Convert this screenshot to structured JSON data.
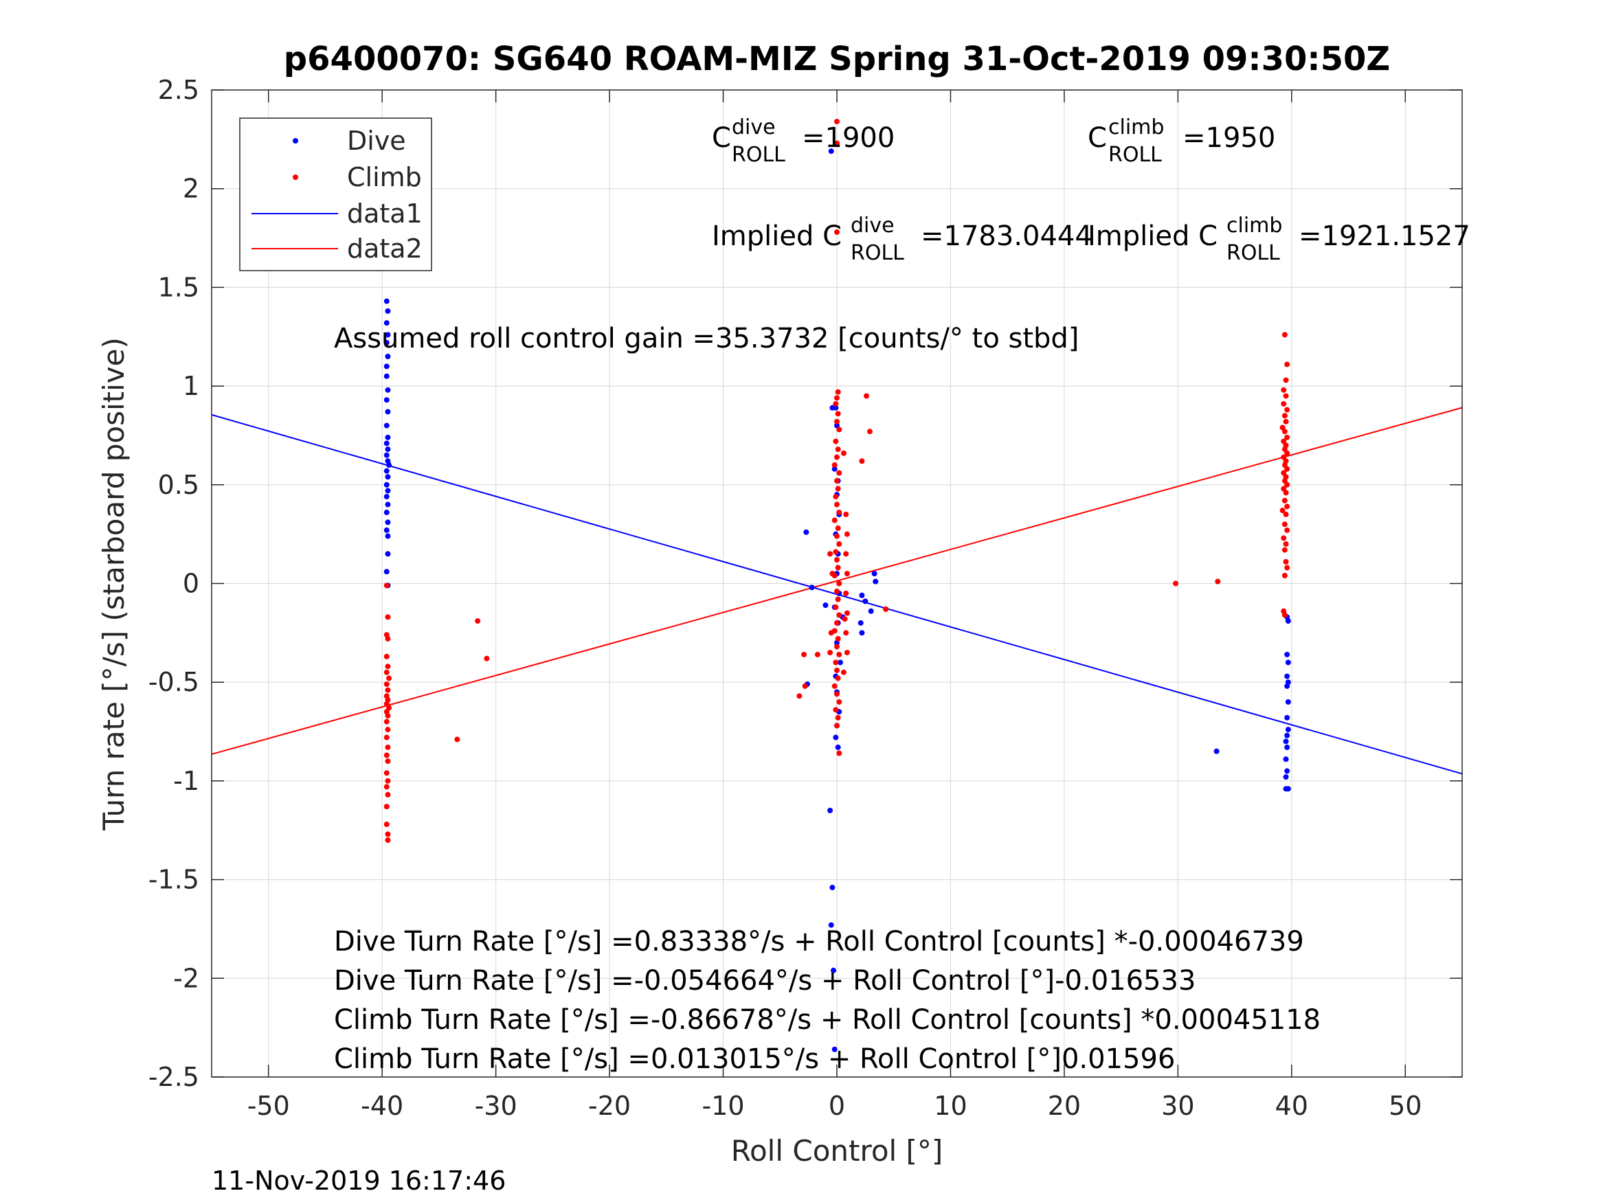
{
  "chart_data": {
    "type": "scatter",
    "title": "p6400070: SG640 ROAM-MIZ Spring 31-Oct-2019 09:30:50Z",
    "xlabel": "Roll Control [°]",
    "ylabel": "Turn rate [°/s] (starboard positive)",
    "xlim": [
      -55,
      55
    ],
    "ylim": [
      -2.5,
      2.5
    ],
    "xticks": [
      -50,
      -40,
      -30,
      -20,
      -10,
      0,
      10,
      20,
      30,
      40,
      50
    ],
    "yticks": [
      -2.5,
      -2,
      -1.5,
      -1,
      -0.5,
      0,
      0.5,
      1,
      1.5,
      2,
      2.5
    ],
    "xtick_labels": [
      "-50",
      "-40",
      "-30",
      "-20",
      "-10",
      "0",
      "10",
      "20",
      "30",
      "40",
      "50"
    ],
    "ytick_labels": [
      "-2.5",
      "-2",
      "-1.5",
      "-1",
      "-0.5",
      "0",
      "0.5",
      "1",
      "1.5",
      "2",
      "2.5"
    ],
    "grid": true,
    "legend_position": "top-left",
    "timestamp": "11-Nov-2019 16:17:46",
    "series": [
      {
        "name": "Dive",
        "kind": "points",
        "color": "#0000ff",
        "points": [
          [
            -39.6,
            1.7
          ],
          [
            -39.6,
            1.43
          ],
          [
            -39.5,
            1.38
          ],
          [
            -39.6,
            1.32
          ],
          [
            -39.5,
            1.26
          ],
          [
            -39.6,
            1.22
          ],
          [
            -39.5,
            1.15
          ],
          [
            -39.6,
            1.1
          ],
          [
            -39.6,
            1.05
          ],
          [
            -39.5,
            0.98
          ],
          [
            -39.6,
            0.93
          ],
          [
            -39.5,
            0.87
          ],
          [
            -39.6,
            0.8
          ],
          [
            -39.5,
            0.74
          ],
          [
            -39.6,
            0.71
          ],
          [
            -39.5,
            0.68
          ],
          [
            -39.6,
            0.65
          ],
          [
            -39.5,
            0.62
          ],
          [
            -39.4,
            0.6
          ],
          [
            -39.6,
            0.57
          ],
          [
            -39.5,
            0.54
          ],
          [
            -39.6,
            0.5
          ],
          [
            -39.5,
            0.47
          ],
          [
            -39.6,
            0.44
          ],
          [
            -39.5,
            0.4
          ],
          [
            -39.6,
            0.36
          ],
          [
            -39.5,
            0.31
          ],
          [
            -39.6,
            0.27
          ],
          [
            -39.5,
            0.24
          ],
          [
            -39.5,
            0.15
          ],
          [
            -39.6,
            0.06
          ],
          [
            -39.5,
            -0.01
          ],
          [
            -0.5,
            2.19
          ],
          [
            -0.4,
            0.89
          ],
          [
            -0.1,
            0.89
          ],
          [
            0.0,
            0.8
          ],
          [
            -0.2,
            0.58
          ],
          [
            0.1,
            0.52
          ],
          [
            0.0,
            0.45
          ],
          [
            0.2,
            0.35
          ],
          [
            -0.1,
            0.25
          ],
          [
            0.1,
            0.15
          ],
          [
            0.0,
            0.05
          ],
          [
            0.2,
            -0.05
          ],
          [
            -0.2,
            -0.12
          ],
          [
            0.1,
            -0.2
          ],
          [
            0.0,
            -0.3
          ],
          [
            0.3,
            -0.4
          ],
          [
            -0.1,
            -0.47
          ],
          [
            0.0,
            -0.55
          ],
          [
            0.2,
            -0.65
          ],
          [
            0.0,
            -0.72
          ],
          [
            -0.1,
            -0.78
          ],
          [
            0.1,
            -0.83
          ],
          [
            -0.6,
            -1.15
          ],
          [
            -0.4,
            -1.54
          ],
          [
            -0.5,
            -1.73
          ],
          [
            -0.3,
            -1.96
          ],
          [
            -0.2,
            -2.36
          ],
          [
            -1.0,
            -0.11
          ],
          [
            -2.7,
            0.26
          ],
          [
            -2.6,
            -0.51
          ],
          [
            -2.2,
            -0.02
          ],
          [
            2.2,
            -0.06
          ],
          [
            2.5,
            -0.09
          ],
          [
            2.2,
            -0.25
          ],
          [
            3.0,
            -0.14
          ],
          [
            3.3,
            0.05
          ],
          [
            3.4,
            0.01
          ],
          [
            2.1,
            -0.2
          ],
          [
            0.5,
            -0.17
          ],
          [
            39.6,
            -0.17
          ],
          [
            39.7,
            -0.19
          ],
          [
            39.6,
            -0.36
          ],
          [
            39.7,
            -0.4
          ],
          [
            39.6,
            -0.47
          ],
          [
            39.7,
            -0.5
          ],
          [
            39.6,
            -0.52
          ],
          [
            39.7,
            -0.6
          ],
          [
            39.6,
            -0.68
          ],
          [
            39.7,
            -0.74
          ],
          [
            39.6,
            -0.77
          ],
          [
            39.5,
            -0.8
          ],
          [
            39.6,
            -0.83
          ],
          [
            39.5,
            -0.89
          ],
          [
            39.6,
            -0.95
          ],
          [
            39.5,
            -0.98
          ],
          [
            39.5,
            -1.04
          ],
          [
            39.7,
            -1.04
          ],
          [
            33.4,
            -0.85
          ]
        ]
      },
      {
        "name": "Climb",
        "kind": "points",
        "color": "#ff0000",
        "points": [
          [
            -39.6,
            -0.01
          ],
          [
            -39.5,
            -0.17
          ],
          [
            -39.6,
            -0.26
          ],
          [
            -39.5,
            -0.28
          ],
          [
            -39.6,
            -0.37
          ],
          [
            -39.5,
            -0.42
          ],
          [
            -39.6,
            -0.45
          ],
          [
            -39.4,
            -0.48
          ],
          [
            -39.6,
            -0.51
          ],
          [
            -39.5,
            -0.54
          ],
          [
            -39.6,
            -0.57
          ],
          [
            -39.5,
            -0.59
          ],
          [
            -39.6,
            -0.61
          ],
          [
            -39.4,
            -0.63
          ],
          [
            -39.6,
            -0.65
          ],
          [
            -39.5,
            -0.67
          ],
          [
            -39.6,
            -0.7
          ],
          [
            -39.5,
            -0.74
          ],
          [
            -39.6,
            -0.78
          ],
          [
            -39.5,
            -0.83
          ],
          [
            -39.6,
            -0.87
          ],
          [
            -39.5,
            -0.9
          ],
          [
            -39.6,
            -0.96
          ],
          [
            -39.5,
            -1.0
          ],
          [
            -39.6,
            -1.03
          ],
          [
            -39.5,
            -1.07
          ],
          [
            -39.6,
            -1.13
          ],
          [
            -39.6,
            -1.22
          ],
          [
            -39.5,
            -1.27
          ],
          [
            -39.5,
            -1.3
          ],
          [
            -31.6,
            -0.19
          ],
          [
            -30.8,
            -0.38
          ],
          [
            -33.4,
            -0.79
          ],
          [
            0.0,
            2.34
          ],
          [
            0.0,
            2.23
          ],
          [
            0.0,
            1.78
          ],
          [
            0.1,
            0.97
          ],
          [
            0.0,
            0.94
          ],
          [
            -0.1,
            0.91
          ],
          [
            0.1,
            0.86
          ],
          [
            0.0,
            0.82
          ],
          [
            0.2,
            0.78
          ],
          [
            -0.1,
            0.72
          ],
          [
            0.1,
            0.68
          ],
          [
            0.0,
            0.64
          ],
          [
            -0.2,
            0.6
          ],
          [
            0.2,
            0.56
          ],
          [
            0.0,
            0.52
          ],
          [
            0.1,
            0.48
          ],
          [
            -0.1,
            0.44
          ],
          [
            0.0,
            0.4
          ],
          [
            0.2,
            0.36
          ],
          [
            -0.2,
            0.32
          ],
          [
            0.1,
            0.28
          ],
          [
            0.0,
            0.24
          ],
          [
            0.2,
            0.2
          ],
          [
            -0.1,
            0.16
          ],
          [
            0.0,
            0.12
          ],
          [
            0.1,
            0.08
          ],
          [
            -0.2,
            0.04
          ],
          [
            0.2,
            0.0
          ],
          [
            0.0,
            -0.04
          ],
          [
            0.1,
            -0.08
          ],
          [
            -0.1,
            -0.12
          ],
          [
            0.2,
            -0.16
          ],
          [
            0.0,
            -0.2
          ],
          [
            -0.2,
            -0.24
          ],
          [
            0.1,
            -0.28
          ],
          [
            0.0,
            -0.32
          ],
          [
            0.2,
            -0.36
          ],
          [
            -0.1,
            -0.4
          ],
          [
            0.0,
            -0.44
          ],
          [
            0.1,
            -0.48
          ],
          [
            -0.2,
            -0.52
          ],
          [
            0.0,
            -0.56
          ],
          [
            0.2,
            -0.6
          ],
          [
            -0.1,
            -0.64
          ],
          [
            0.1,
            -0.68
          ],
          [
            0.0,
            -0.72
          ],
          [
            0.2,
            -0.86
          ],
          [
            0.8,
            0.35
          ],
          [
            0.9,
            0.25
          ],
          [
            0.8,
            0.15
          ],
          [
            0.9,
            0.05
          ],
          [
            0.8,
            -0.05
          ],
          [
            0.9,
            -0.15
          ],
          [
            0.8,
            -0.25
          ],
          [
            0.9,
            -0.35
          ],
          [
            0.6,
            0.66
          ],
          [
            0.7,
            -0.18
          ],
          [
            0.6,
            -0.45
          ],
          [
            -0.6,
            -0.35
          ],
          [
            -0.5,
            -0.25
          ],
          [
            -0.6,
            0.15
          ],
          [
            -0.4,
            0.05
          ],
          [
            2.6,
            0.95
          ],
          [
            2.9,
            0.77
          ],
          [
            2.2,
            0.62
          ],
          [
            4.3,
            -0.13
          ],
          [
            -1.7,
            -0.36
          ],
          [
            -2.9,
            -0.36
          ],
          [
            -3.3,
            -0.57
          ],
          [
            -2.8,
            -0.52
          ],
          [
            39.4,
            1.26
          ],
          [
            39.6,
            1.11
          ],
          [
            39.5,
            1.03
          ],
          [
            39.3,
            0.98
          ],
          [
            39.5,
            0.95
          ],
          [
            39.3,
            0.91
          ],
          [
            39.6,
            0.88
          ],
          [
            39.4,
            0.85
          ],
          [
            39.5,
            0.82
          ],
          [
            39.2,
            0.79
          ],
          [
            39.4,
            0.77
          ],
          [
            39.6,
            0.74
          ],
          [
            39.3,
            0.72
          ],
          [
            39.5,
            0.7
          ],
          [
            39.4,
            0.68
          ],
          [
            39.6,
            0.66
          ],
          [
            39.3,
            0.64
          ],
          [
            39.5,
            0.62
          ],
          [
            39.4,
            0.6
          ],
          [
            39.6,
            0.58
          ],
          [
            39.3,
            0.56
          ],
          [
            39.5,
            0.54
          ],
          [
            39.4,
            0.52
          ],
          [
            39.6,
            0.5
          ],
          [
            39.3,
            0.48
          ],
          [
            39.5,
            0.46
          ],
          [
            39.4,
            0.42
          ],
          [
            39.6,
            0.39
          ],
          [
            39.2,
            0.37
          ],
          [
            39.5,
            0.35
          ],
          [
            39.4,
            0.3
          ],
          [
            39.6,
            0.27
          ],
          [
            39.3,
            0.23
          ],
          [
            39.5,
            0.2
          ],
          [
            39.4,
            0.17
          ],
          [
            39.5,
            0.11
          ],
          [
            39.6,
            0.08
          ],
          [
            39.4,
            0.04
          ],
          [
            39.3,
            -0.14
          ],
          [
            39.4,
            -0.16
          ],
          [
            29.8,
            0.0
          ],
          [
            33.5,
            0.01
          ]
        ]
      },
      {
        "name": "data1",
        "kind": "line",
        "color": "#0000ff",
        "x": [
          -55,
          55
        ],
        "y": [
          0.8546,
          -0.964
        ]
      },
      {
        "name": "data2",
        "kind": "line",
        "color": "#ff0000",
        "x": [
          -55,
          55
        ],
        "y": [
          -0.8648,
          0.8908
        ]
      }
    ]
  },
  "annotations": {
    "c_roll_dive": {
      "base": "C",
      "sup": "dive",
      "sub": "ROLL",
      "value": "=1900"
    },
    "c_roll_climb": {
      "base": "C",
      "sup": "climb",
      "sub": "ROLL",
      "value": "=1950"
    },
    "implied_dive": {
      "prefix": "Implied C",
      "sup": "dive",
      "sub": "ROLL",
      "value": "=1783.0444"
    },
    "implied_climb": {
      "prefix": "Implied C",
      "sup": "climb",
      "sub": "ROLL",
      "value": "=1921.1527"
    },
    "gain": "Assumed roll control gain =35.3732 [counts/° to stbd]",
    "equations": [
      "Dive Turn Rate [°/s] =0.83338°/s + Roll Control [counts] *-0.00046739",
      "Dive Turn Rate [°/s] =-0.054664°/s + Roll Control [°]-0.016533",
      "Climb Turn Rate [°/s] =-0.86678°/s + Roll Control [counts] *0.00045118",
      "Climb Turn Rate [°/s] =0.013015°/s + Roll Control [°]0.01596"
    ]
  }
}
